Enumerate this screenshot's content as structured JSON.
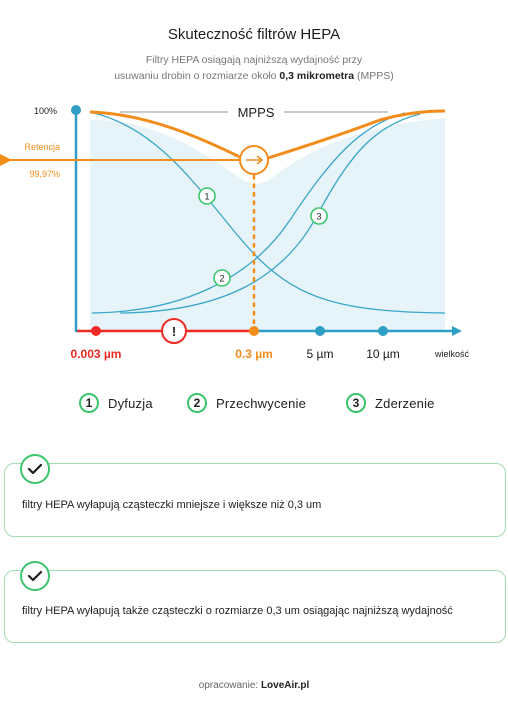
{
  "header": {
    "title": "Skuteczność filtrów HEPA",
    "subtitle_line1": "Filtry HEPA osiągają najniższą wydajność przy",
    "subtitle_line2_pre": "usuwaniu drobin o rozmiarze około ",
    "subtitle_line2_bold": "0,3 mikrometra",
    "subtitle_line2_post": " (MPPS)"
  },
  "chart_data": {
    "type": "line",
    "title": "Skuteczność filtrów HEPA",
    "y_top_label": "100%",
    "retention_label": "Retencja",
    "retention_value": "99,97%",
    "mpps_label": "MPPS",
    "xlabel": "wielkość",
    "x_ticks": [
      {
        "label": "0.003 µm",
        "color": "#ee2a24"
      },
      {
        "label": "0.3 µm",
        "color": "#f28c1a"
      },
      {
        "label": "5 µm",
        "color": "#1b1b1b"
      },
      {
        "label": "10 µm",
        "color": "#1b1b1b"
      }
    ],
    "warning_symbol": "!",
    "series": [
      {
        "marker": "1",
        "name": "Dyfuzja",
        "trend": "decreasing"
      },
      {
        "marker": "2",
        "name": "Przechwycenie",
        "trend": "increasing"
      },
      {
        "marker": "3",
        "name": "Zderzenie",
        "trend": "increasing"
      }
    ],
    "colors": {
      "axis": "#2e9ec4",
      "mechanisms": "#3aa7c8",
      "total": "#f28c1a",
      "warning": "#ee2a24",
      "fill": "#e6f3f8",
      "markers": "#3cc56b"
    }
  },
  "legend": [
    {
      "num": "1",
      "label": "Dyfuzja"
    },
    {
      "num": "2",
      "label": "Przechwycenie"
    },
    {
      "num": "3",
      "label": "Zderzenie"
    }
  ],
  "cards": [
    {
      "text": "filtry HEPA wyłapują cząsteczki mniejsze i większe niż 0,3 um",
      "icon": "check-icon"
    },
    {
      "text": "filtry HEPA wyłapują także cząsteczki o rozmiarze 0,3 um osiągając najniższą wydajność",
      "icon": "check-icon"
    }
  ],
  "footer": {
    "prefix": "opracowanie: ",
    "brand": "LoveAir.pl"
  }
}
